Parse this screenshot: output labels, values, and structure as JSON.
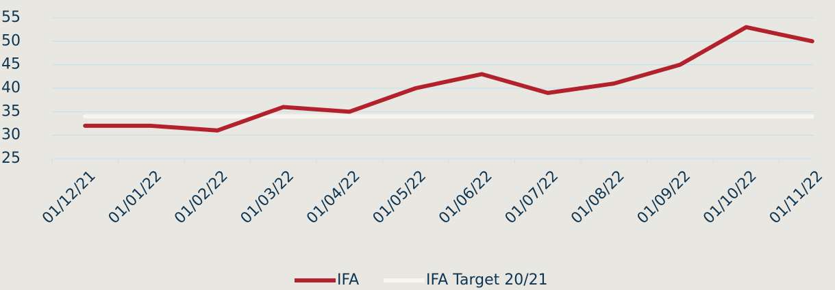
{
  "chart_data": {
    "type": "line",
    "categories": [
      "01/12/21",
      "01/01/22",
      "01/02/22",
      "01/03/22",
      "01/04/22",
      "01/05/22",
      "01/06/22",
      "01/07/22",
      "01/08/22",
      "01/09/22",
      "01/10/22",
      "01/11/22"
    ],
    "series": [
      {
        "name": "IFA",
        "color": "#b3222c",
        "values": [
          32,
          32,
          31,
          36,
          35,
          40,
          43,
          39,
          41,
          45,
          53,
          50
        ]
      },
      {
        "name": "IFA Target 20/21",
        "color": "#f7f5f0",
        "values": [
          34,
          34,
          34,
          34,
          34,
          34,
          34,
          34,
          34,
          34,
          34,
          34
        ]
      }
    ],
    "ylim": [
      25,
      55
    ],
    "yticks": [
      25,
      30,
      35,
      40,
      45,
      50,
      55
    ],
    "grid": true,
    "legend": "bottom"
  }
}
